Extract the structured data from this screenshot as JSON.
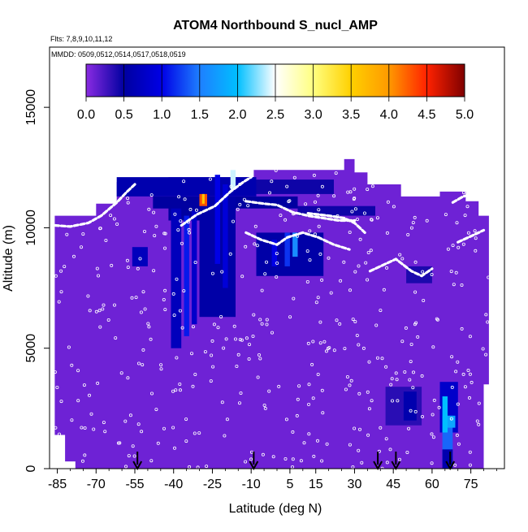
{
  "chart_data": {
    "type": "heatmap",
    "title": "ATOM4 Northbound S_nucl_AMP",
    "subtitle_flights": "Flts: 7,8,9,10,11,12",
    "subtitle_dates": "MMDD: 0509,0512,0514,0517,0518,0519",
    "xlabel": "Latitude (deg N)",
    "ylabel": "Altitude (m)",
    "xlim": [
      -88,
      88
    ],
    "ylim": [
      0,
      17500
    ],
    "x_ticks": [
      -85,
      -70,
      -55,
      -40,
      -25,
      -10,
      5,
      15,
      30,
      45,
      60,
      75
    ],
    "x_tick_labels": [
      "-85",
      "-70",
      "-55",
      "-40",
      "-25",
      "-10",
      "5",
      "15",
      "30",
      "45",
      "60",
      "75"
    ],
    "y_ticks": [
      0,
      5000,
      10000,
      15000
    ],
    "y_tick_labels": [
      "0",
      "5000",
      "10000",
      "15000"
    ],
    "colorbar": {
      "range": [
        0,
        5
      ],
      "ticks": [
        0.0,
        0.5,
        1.0,
        1.5,
        2.0,
        2.5,
        3.0,
        3.5,
        4.0,
        4.5,
        5.0
      ],
      "tick_labels": [
        "0.0",
        "0.5",
        "1.0",
        "1.5",
        "2.0",
        "2.5",
        "3.0",
        "3.5",
        "4.0",
        "4.5",
        "5.0"
      ],
      "stops": [
        {
          "v": 0.0,
          "c": "#8a2be2"
        },
        {
          "v": 0.5,
          "c": "#0000a0"
        },
        {
          "v": 1.0,
          "c": "#0000e6"
        },
        {
          "v": 1.5,
          "c": "#1e7fff"
        },
        {
          "v": 2.0,
          "c": "#00bfff"
        },
        {
          "v": 2.5,
          "c": "#ffffff"
        },
        {
          "v": 3.0,
          "c": "#ffff80"
        },
        {
          "v": 3.5,
          "c": "#ffd000"
        },
        {
          "v": 4.0,
          "c": "#ff9900"
        },
        {
          "v": 4.5,
          "c": "#ff2200"
        },
        {
          "v": 5.0,
          "c": "#800000"
        }
      ]
    },
    "background_value": 0.1,
    "domain_outline": [
      [
        -86,
        1400
      ],
      [
        -82,
        1400
      ],
      [
        -82,
        300
      ],
      [
        -78,
        300
      ],
      [
        -78,
        0
      ],
      [
        80,
        0
      ],
      [
        80,
        3500
      ],
      [
        82,
        3500
      ],
      [
        82,
        10500
      ],
      [
        78,
        10500
      ],
      [
        78,
        11100
      ],
      [
        73,
        11100
      ],
      [
        73,
        11500
      ],
      [
        63,
        11500
      ],
      [
        63,
        11300
      ],
      [
        48,
        11300
      ],
      [
        48,
        11800
      ],
      [
        35,
        11800
      ],
      [
        35,
        12300
      ],
      [
        30,
        12300
      ],
      [
        30,
        12850
      ],
      [
        26,
        12850
      ],
      [
        26,
        12400
      ],
      [
        -9,
        12400
      ],
      [
        -9,
        12100
      ],
      [
        -42,
        12100
      ],
      [
        -42,
        11900
      ],
      [
        -62,
        11900
      ],
      [
        -62,
        11000
      ],
      [
        -70,
        11000
      ],
      [
        -70,
        10500
      ],
      [
        -86,
        10500
      ]
    ],
    "patches": [
      {
        "x": [
          -62,
          -8
        ],
        "y": [
          11300,
          12100
        ],
        "v": 0.6
      },
      {
        "x": [
          -8,
          22
        ],
        "y": [
          11400,
          12000
        ],
        "v": 0.45
      },
      {
        "x": [
          -48,
          8
        ],
        "y": [
          10800,
          11300
        ],
        "v": 0.5
      },
      {
        "x": [
          8,
          38
        ],
        "y": [
          10500,
          10900
        ],
        "v": 0.45
      },
      {
        "x": [
          -42,
          -28
        ],
        "y": [
          10300,
          10900
        ],
        "v": 0.5
      },
      {
        "x": [
          -30,
          -16
        ],
        "y": [
          6300,
          11300
        ],
        "v": 0.55
      },
      {
        "x": [
          -41,
          -37
        ],
        "y": [
          5000,
          10800
        ],
        "v": 0.7
      },
      {
        "x": [
          -36,
          -34
        ],
        "y": [
          5500,
          10500
        ],
        "v": 1.1
      },
      {
        "x": [
          -33,
          -31
        ],
        "y": [
          6000,
          10700
        ],
        "v": 0.8
      },
      {
        "x": [
          -24,
          -22
        ],
        "y": [
          8500,
          12200
        ],
        "v": 1.0
      },
      {
        "x": [
          -21,
          -19
        ],
        "y": [
          7500,
          11800
        ],
        "v": 0.9
      },
      {
        "x": [
          -56,
          -50
        ],
        "y": [
          8400,
          9200
        ],
        "v": 0.7
      },
      {
        "x": [
          -8,
          18
        ],
        "y": [
          8000,
          9800
        ],
        "v": 0.55
      },
      {
        "x": [
          3,
          5
        ],
        "y": [
          8400,
          9800
        ],
        "v": 1.2
      },
      {
        "x": [
          6,
          8
        ],
        "y": [
          8800,
          9800
        ],
        "v": 1.6
      },
      {
        "x": [
          -2,
          0
        ],
        "y": [
          8400,
          9500
        ],
        "v": 1.0
      },
      {
        "x": [
          -30,
          -27
        ],
        "y": [
          10900,
          11400
        ],
        "v": 4.3
      },
      {
        "x": [
          -29,
          -28
        ],
        "y": [
          11000,
          11400
        ],
        "v": 3.6
      },
      {
        "x": [
          -18,
          -16
        ],
        "y": [
          11600,
          12400
        ],
        "v": 2.4
      },
      {
        "x": [
          50,
          60
        ],
        "y": [
          7700,
          8400
        ],
        "v": 0.4
      },
      {
        "x": [
          42,
          56
        ],
        "y": [
          1800,
          3400
        ],
        "v": 0.35
      },
      {
        "x": [
          49,
          54
        ],
        "y": [
          2000,
          3200
        ],
        "v": 0.6
      },
      {
        "x": [
          63,
          70
        ],
        "y": [
          1500,
          3600
        ],
        "v": 0.8
      },
      {
        "x": [
          64,
          68
        ],
        "y": [
          200,
          2200
        ],
        "v": 1.4
      },
      {
        "x": [
          64,
          66
        ],
        "y": [
          1500,
          3000
        ],
        "v": 2.0
      },
      {
        "x": [
          66,
          69
        ],
        "y": [
          1700,
          2200
        ],
        "v": 1.8
      },
      {
        "x": [
          64,
          68
        ],
        "y": [
          0,
          800
        ],
        "v": 0.6
      }
    ],
    "flight_tracks": [
      [
        [
          -86,
          10100
        ],
        [
          -80,
          10050
        ],
        [
          -73,
          10200
        ],
        [
          -68,
          10500
        ],
        [
          -62,
          11050
        ],
        [
          -58,
          11500
        ],
        [
          -55,
          11800
        ]
      ],
      [
        [
          -37,
          10100
        ],
        [
          -31,
          10550
        ],
        [
          -24,
          10900
        ],
        [
          -18,
          11500
        ],
        [
          -13,
          11900
        ],
        [
          -10,
          12100
        ]
      ],
      [
        [
          -12,
          11100
        ],
        [
          -5,
          11000
        ],
        [
          0,
          10950
        ],
        [
          6,
          10650
        ],
        [
          12,
          10500
        ],
        [
          18,
          10400
        ],
        [
          24,
          10300
        ],
        [
          30,
          10300
        ]
      ],
      [
        [
          -12,
          9800
        ],
        [
          -6,
          9500
        ],
        [
          0,
          9300
        ],
        [
          4,
          9600
        ],
        [
          10,
          9800
        ],
        [
          16,
          9600
        ],
        [
          22,
          9300
        ],
        [
          28,
          9100
        ]
      ],
      [
        [
          36,
          8200
        ],
        [
          42,
          8500
        ],
        [
          46,
          8700
        ],
        [
          52,
          8200
        ],
        [
          56,
          8000
        ],
        [
          60,
          8300
        ]
      ],
      [
        [
          68,
          11050
        ],
        [
          72,
          11300
        ],
        [
          76,
          11400
        ]
      ],
      [
        [
          70,
          9400
        ],
        [
          74,
          9600
        ],
        [
          78,
          9800
        ],
        [
          80,
          9900
        ]
      ],
      [
        [
          12,
          10600
        ],
        [
          20,
          10500
        ],
        [
          26,
          10400
        ],
        [
          30,
          10200
        ],
        [
          34,
          9800
        ]
      ]
    ],
    "descent_markers_lat": [
      -54,
      -9,
      39,
      46,
      67
    ]
  }
}
